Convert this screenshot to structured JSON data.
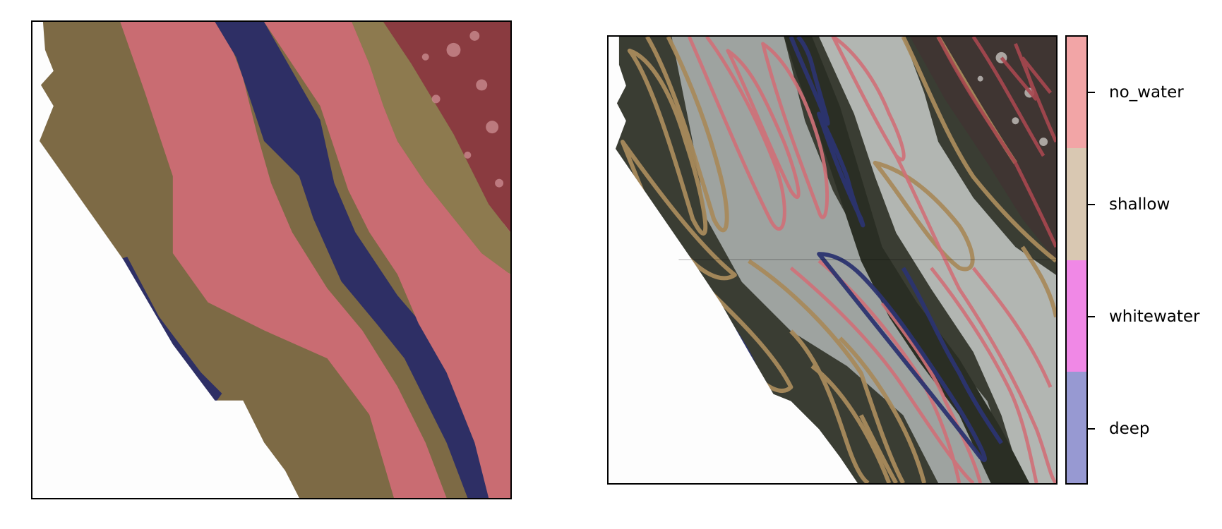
{
  "figure": {
    "left_panel": {
      "description_name": "segmentation-overlay",
      "classes_shown": [
        "deep",
        "shallow",
        "no_water"
      ]
    },
    "right_panel": {
      "description_name": "annotation-outlines",
      "classes_shown": [
        "deep",
        "shallow",
        "no_water"
      ]
    },
    "colorbar": {
      "labels": [
        "no_water",
        "shallow",
        "whitewater",
        "deep"
      ],
      "colors": [
        "#f2a5a6",
        "#d9c8b2",
        "#f088e6",
        "#9799d2"
      ]
    },
    "colors": {
      "deep": "#2e2f65",
      "shallow": "#7d6a45",
      "no_water": "#c96c72",
      "no_water_dark": "#8a3b40",
      "outline_shallow": "#a88a5c",
      "outline_no_water": "#d07078",
      "outline_deep": "#2c3470",
      "photo_dark": "#2b2d24",
      "photo_sand": "#9ea3a0"
    }
  }
}
